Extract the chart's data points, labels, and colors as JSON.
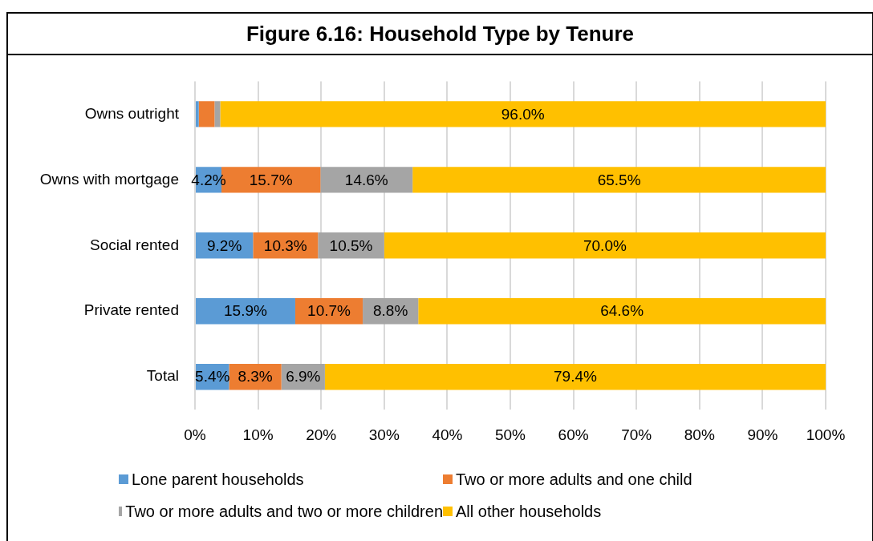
{
  "chart_data": {
    "type": "bar",
    "orientation": "horizontal",
    "stacked": true,
    "title": "Figure 6.16: Household Type by Tenure",
    "categories": [
      "Owns outright",
      "Owns with mortgage",
      "Social rented",
      "Private rented",
      "Total"
    ],
    "series": [
      {
        "name": "Lone parent households",
        "color": "#5b9bd5",
        "values": [
          0.6,
          4.2,
          9.2,
          15.9,
          5.4
        ],
        "value_labels": [
          null,
          "4.2%",
          "9.2%",
          "15.9%",
          "5.4%"
        ]
      },
      {
        "name": "Two or more adults and one child",
        "color": "#ed7d31",
        "values": [
          2.5,
          15.7,
          10.3,
          10.7,
          8.3
        ],
        "value_labels": [
          null,
          "15.7%",
          "10.3%",
          "10.7%",
          "8.3%"
        ]
      },
      {
        "name": "Two or more adults and two or more children",
        "color": "#a5a5a5",
        "values": [
          0.9,
          14.6,
          10.5,
          8.8,
          6.9
        ],
        "value_labels": [
          null,
          "14.6%",
          "10.5%",
          "8.8%",
          "6.9%"
        ]
      },
      {
        "name": "All other households",
        "color": "#ffc000",
        "values": [
          96.0,
          65.5,
          70.0,
          64.6,
          79.4
        ],
        "value_labels": [
          "96.0%",
          "65.5%",
          "70.0%",
          "64.6%",
          "79.4%"
        ]
      }
    ],
    "xlim": [
      0,
      100
    ],
    "xticks": [
      {
        "value": 0,
        "label": "0%"
      },
      {
        "value": 10,
        "label": "10%"
      },
      {
        "value": 20,
        "label": "20%"
      },
      {
        "value": 30,
        "label": "30%"
      },
      {
        "value": 40,
        "label": "40%"
      },
      {
        "value": 50,
        "label": "50%"
      },
      {
        "value": 60,
        "label": "60%"
      },
      {
        "value": 70,
        "label": "70%"
      },
      {
        "value": 80,
        "label": "80%"
      },
      {
        "value": 90,
        "label": "90%"
      },
      {
        "value": 100,
        "label": "100%"
      }
    ],
    "grid": "x",
    "legend": "bottom"
  }
}
